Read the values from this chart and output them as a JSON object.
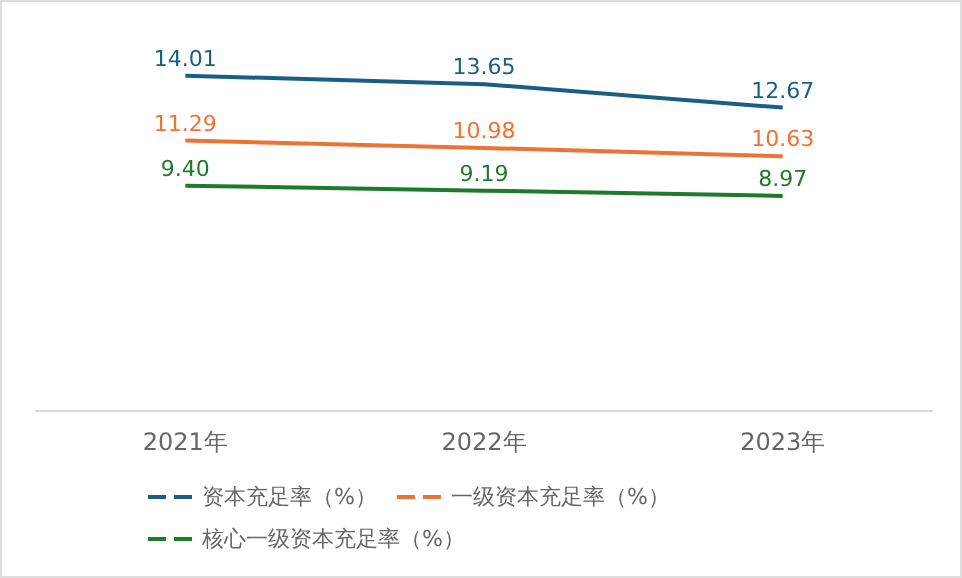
{
  "chart_data": {
    "type": "line",
    "categories": [
      "2021年",
      "2022年",
      "2023年"
    ],
    "series": [
      {
        "name": "资本充足率（%）",
        "color": "#1a5e84",
        "values": [
          14.01,
          13.65,
          12.67
        ],
        "value_labels": [
          "14.01",
          "13.65",
          "12.67"
        ]
      },
      {
        "name": "一级资本充足率（%）",
        "color": "#ee7233",
        "values": [
          11.29,
          10.98,
          10.63
        ],
        "value_labels": [
          "11.29",
          "10.98",
          "10.63"
        ]
      },
      {
        "name": "核心一级资本充足率（%）",
        "color": "#1f7a2c",
        "values": [
          9.4,
          9.19,
          8.97
        ],
        "value_labels": [
          "9.40",
          "9.19",
          "8.97"
        ]
      }
    ],
    "legend": "bottom",
    "grid": false,
    "marker": "none",
    "line_style": "solid",
    "tick_labels": "x"
  }
}
